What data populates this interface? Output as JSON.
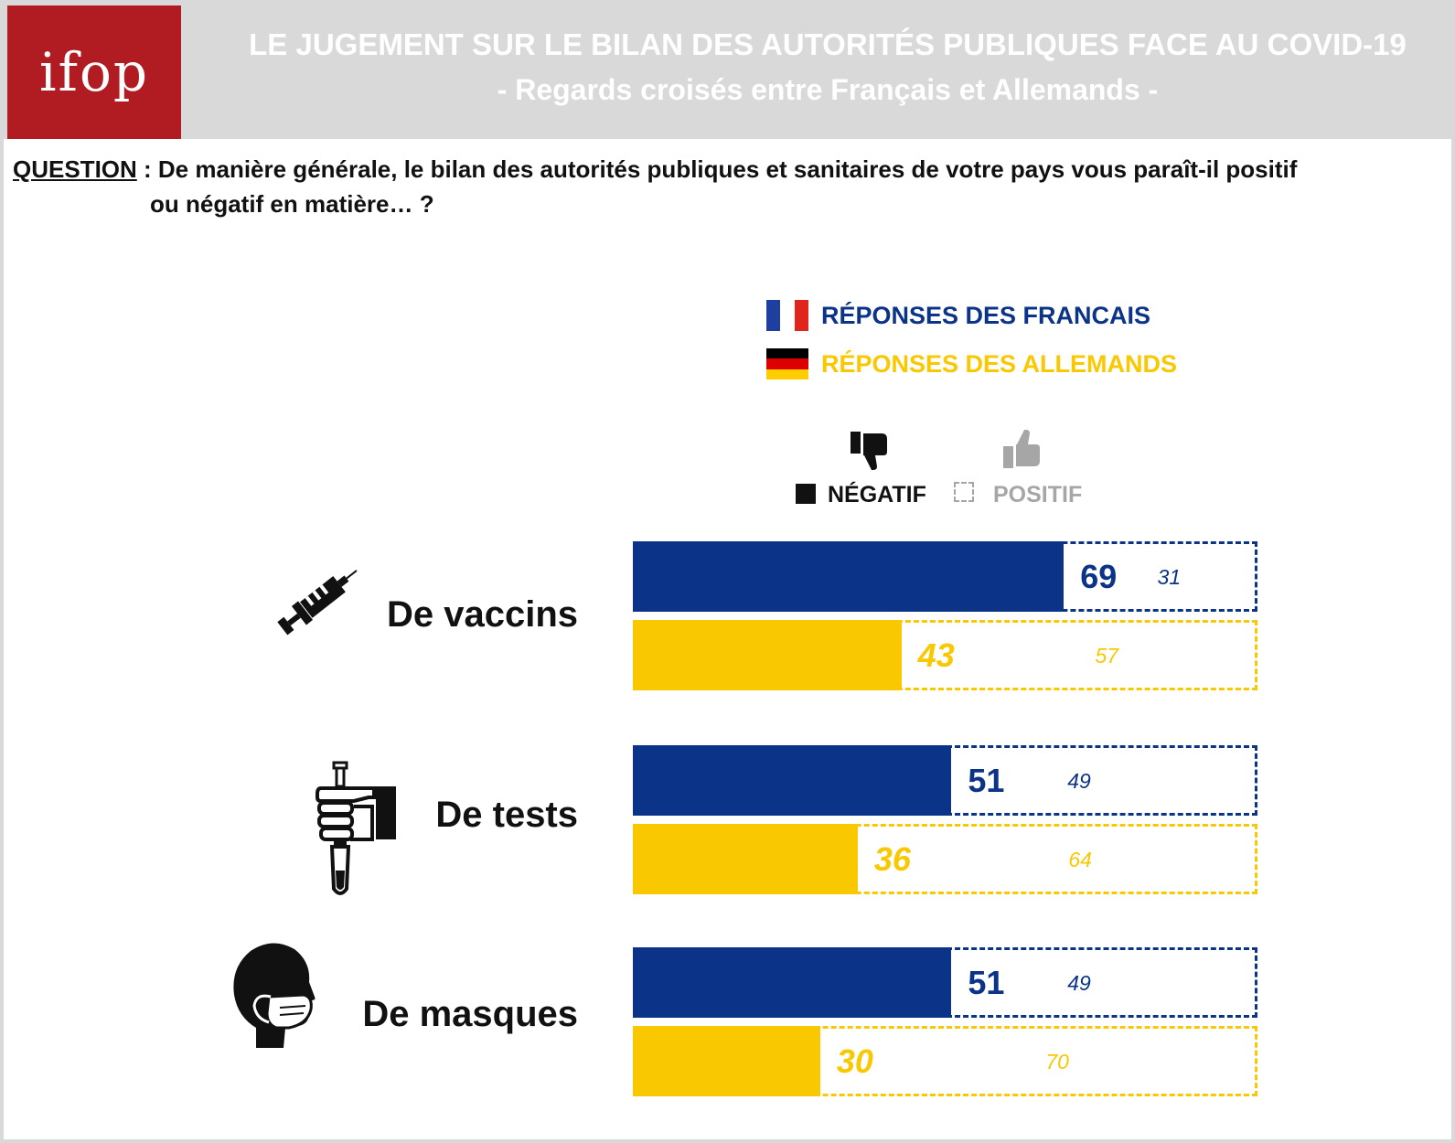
{
  "header": {
    "logo_text": "ifop",
    "title_line1": "LE JUGEMENT SUR LE BILAN DES AUTORITÉS PUBLIQUES FACE AU COVID-19",
    "title_line2": "- Regards croisés entre Français et Allemands -"
  },
  "question": {
    "label": "QUESTION",
    "text_line1": " : De manière générale, le bilan des autorités publiques et sanitaires de votre pays vous paraît-il positif",
    "text_line2": "ou négatif en matière… ?"
  },
  "legend": {
    "france": "RÉPONSES DES FRANCAIS",
    "germany": "RÉPONSES DES ALLEMANDS",
    "negative": "NÉGATIF",
    "positive": "POSITIF"
  },
  "colors": {
    "france": "#0b3488",
    "germany": "#f9c800",
    "logo": "#b01c22",
    "header_bg": "#d9d9d9",
    "positive_label": "#a6a6a6"
  },
  "icons": {
    "vaccins": "syringe-icon",
    "tests": "test-tube-hand-icon",
    "masques": "face-mask-icon",
    "negative": "thumbs-down-icon",
    "positive": "thumbs-up-icon"
  },
  "chart_data": {
    "type": "bar",
    "orientation": "horizontal",
    "stacked": true,
    "categories": [
      "De vaccins",
      "De tests",
      "De masques"
    ],
    "series": [
      {
        "name": "RÉPONSES DES FRANCAIS",
        "negative": [
          69,
          51,
          51
        ],
        "positive": [
          31,
          49,
          49
        ]
      },
      {
        "name": "RÉPONSES DES ALLEMANDS",
        "negative": [
          43,
          36,
          30
        ],
        "positive": [
          57,
          64,
          70
        ]
      }
    ],
    "xlim": [
      0,
      100
    ],
    "legend_position": "top-right",
    "grid": false
  }
}
